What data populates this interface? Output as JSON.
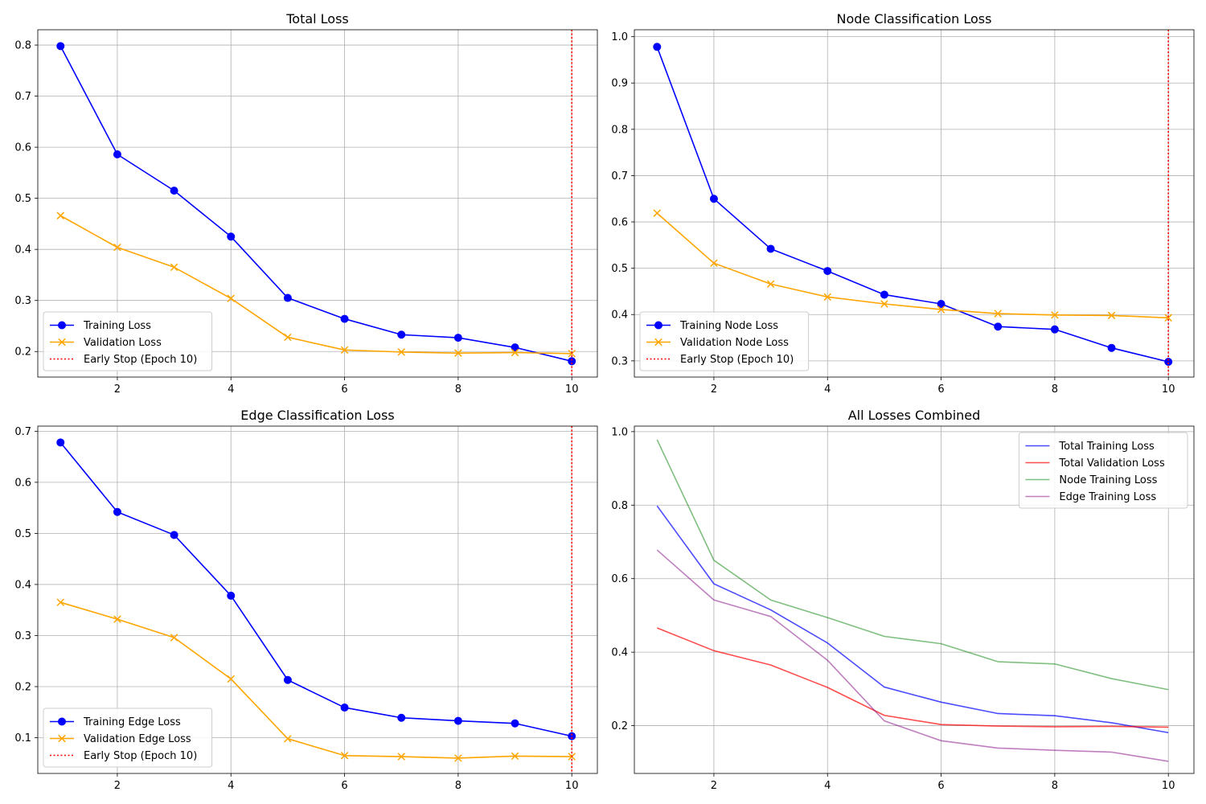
{
  "chart_data": [
    {
      "type": "line",
      "title": "Total Loss",
      "xlabel": "",
      "ylabel": "",
      "x": [
        1,
        2,
        3,
        4,
        5,
        6,
        7,
        8,
        9,
        10
      ],
      "xlim": [
        0.6,
        10.45
      ],
      "ylim": [
        0.15,
        0.83
      ],
      "xticks": [
        2,
        4,
        6,
        8,
        10
      ],
      "yticks": [
        0.2,
        0.3,
        0.4,
        0.5,
        0.6,
        0.7,
        0.8
      ],
      "ytick_labels": [
        "0.2",
        "0.3",
        "0.4",
        "0.5",
        "0.6",
        "0.7",
        "0.8"
      ],
      "grid": true,
      "legend_position": "lower-left",
      "early_stop": {
        "x": 10,
        "label": "Early Stop (Epoch 10)",
        "color": "#ff0000"
      },
      "series": [
        {
          "name": "Training Loss",
          "color": "#0000ff",
          "marker": "circle",
          "values": [
            0.798,
            0.586,
            0.515,
            0.425,
            0.305,
            0.264,
            0.233,
            0.227,
            0.208,
            0.181
          ]
        },
        {
          "name": "Validation Loss",
          "color": "#ffa500",
          "marker": "x",
          "values": [
            0.466,
            0.404,
            0.365,
            0.304,
            0.228,
            0.203,
            0.199,
            0.197,
            0.198,
            0.196
          ]
        }
      ]
    },
    {
      "type": "line",
      "title": "Node Classification Loss",
      "xlabel": "",
      "ylabel": "",
      "x": [
        1,
        2,
        3,
        4,
        5,
        6,
        7,
        8,
        9,
        10
      ],
      "xlim": [
        0.6,
        10.45
      ],
      "ylim": [
        0.265,
        1.015
      ],
      "xticks": [
        2,
        4,
        6,
        8,
        10
      ],
      "yticks": [
        0.3,
        0.4,
        0.5,
        0.6,
        0.7,
        0.8,
        0.9,
        1.0
      ],
      "ytick_labels": [
        "0.3",
        "0.4",
        "0.5",
        "0.6",
        "0.7",
        "0.8",
        "0.9",
        "1.0"
      ],
      "grid": true,
      "legend_position": "lower-left",
      "early_stop": {
        "x": 10,
        "label": "Early Stop (Epoch 10)",
        "color": "#ff0000"
      },
      "series": [
        {
          "name": "Training Node Loss",
          "color": "#0000ff",
          "marker": "circle",
          "values": [
            0.978,
            0.65,
            0.542,
            0.494,
            0.443,
            0.423,
            0.374,
            0.368,
            0.328,
            0.298
          ]
        },
        {
          "name": "Validation Node Loss",
          "color": "#ffa500",
          "marker": "x",
          "values": [
            0.619,
            0.511,
            0.466,
            0.438,
            0.423,
            0.411,
            0.402,
            0.399,
            0.398,
            0.393
          ]
        }
      ]
    },
    {
      "type": "line",
      "title": "Edge Classification Loss",
      "xlabel": "",
      "ylabel": "",
      "x": [
        1,
        2,
        3,
        4,
        5,
        6,
        7,
        8,
        9,
        10
      ],
      "xlim": [
        0.6,
        10.45
      ],
      "ylim": [
        0.03,
        0.71
      ],
      "xticks": [
        2,
        4,
        6,
        8,
        10
      ],
      "yticks": [
        0.1,
        0.2,
        0.3,
        0.4,
        0.5,
        0.6,
        0.7
      ],
      "ytick_labels": [
        "0.1",
        "0.2",
        "0.3",
        "0.4",
        "0.5",
        "0.6",
        "0.7"
      ],
      "grid": true,
      "legend_position": "lower-left",
      "early_stop": {
        "x": 10,
        "label": "Early Stop (Epoch 10)",
        "color": "#ff0000"
      },
      "series": [
        {
          "name": "Training Edge Loss",
          "color": "#0000ff",
          "marker": "circle",
          "values": [
            0.678,
            0.542,
            0.497,
            0.378,
            0.213,
            0.159,
            0.139,
            0.133,
            0.128,
            0.103
          ]
        },
        {
          "name": "Validation Edge Loss",
          "color": "#ffa500",
          "marker": "x",
          "values": [
            0.365,
            0.332,
            0.296,
            0.215,
            0.098,
            0.065,
            0.063,
            0.06,
            0.064,
            0.063
          ]
        }
      ]
    },
    {
      "type": "line",
      "title": "All Losses Combined",
      "xlabel": "",
      "ylabel": "",
      "x": [
        1,
        2,
        3,
        4,
        5,
        6,
        7,
        8,
        9,
        10
      ],
      "xlim": [
        0.6,
        10.45
      ],
      "ylim": [
        0.07,
        1.015
      ],
      "xticks": [
        2,
        4,
        6,
        8,
        10
      ],
      "yticks": [
        0.2,
        0.4,
        0.6,
        0.8,
        1.0
      ],
      "ytick_labels": [
        "0.2",
        "0.4",
        "0.6",
        "0.8",
        "1.0"
      ],
      "grid": true,
      "legend_position": "upper-right",
      "series": [
        {
          "name": "Total Training Loss",
          "color": "#0000ff",
          "opacity": 0.7,
          "marker": "none",
          "values": [
            0.798,
            0.586,
            0.515,
            0.425,
            0.305,
            0.264,
            0.233,
            0.227,
            0.208,
            0.181
          ]
        },
        {
          "name": "Total Validation Loss",
          "color": "#ff0000",
          "opacity": 0.7,
          "marker": "none",
          "values": [
            0.466,
            0.404,
            0.365,
            0.304,
            0.228,
            0.203,
            0.199,
            0.197,
            0.198,
            0.196
          ]
        },
        {
          "name": "Node Training Loss",
          "color": "#008000",
          "opacity": 0.5,
          "marker": "none",
          "values": [
            0.978,
            0.65,
            0.542,
            0.494,
            0.443,
            0.423,
            0.374,
            0.368,
            0.328,
            0.298
          ]
        },
        {
          "name": "Edge Training Loss",
          "color": "#800080",
          "opacity": 0.5,
          "marker": "none",
          "values": [
            0.678,
            0.542,
            0.497,
            0.378,
            0.213,
            0.159,
            0.139,
            0.133,
            0.128,
            0.103
          ]
        }
      ]
    }
  ]
}
